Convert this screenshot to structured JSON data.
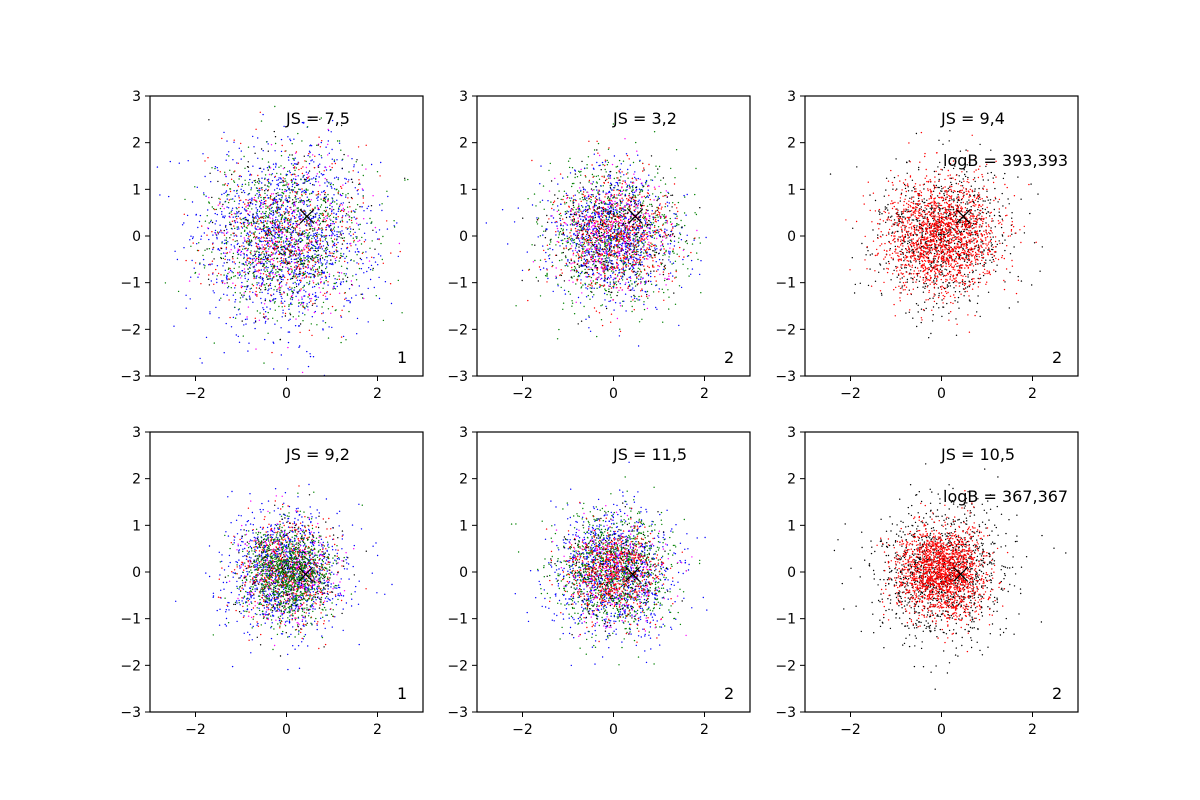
{
  "chart_data": [
    {
      "type": "scatter",
      "xlim": [
        -3,
        3
      ],
      "ylim": [
        -3,
        3
      ],
      "xticks": [
        "−2",
        "0",
        "2"
      ],
      "yticks": [
        "−3",
        "−2",
        "−1",
        "0",
        "1",
        "2",
        "3"
      ],
      "annotation": "JS = 7,5",
      "logB": "",
      "panel_label": "1",
      "marker": {
        "symbol": "x",
        "x": 0.45,
        "y": 0.42
      },
      "series": [
        {
          "color": "#0000ff",
          "count": 1400,
          "spread": 0.95
        },
        {
          "color": "#008000",
          "count": 900,
          "spread": 0.85
        },
        {
          "color": "#ff0000",
          "count": 500,
          "spread": 0.85
        },
        {
          "color": "#ff00ff",
          "count": 250,
          "spread": 0.85
        },
        {
          "color": "#000000",
          "count": 250,
          "spread": 0.85
        }
      ]
    },
    {
      "type": "scatter",
      "xlim": [
        -3,
        3
      ],
      "ylim": [
        -3,
        3
      ],
      "xticks": [
        "−2",
        "0",
        "2"
      ],
      "yticks": [
        "−3",
        "−2",
        "−1",
        "0",
        "1",
        "2",
        "3"
      ],
      "annotation": "JS = 3,2",
      "logB": "",
      "panel_label": "2",
      "marker": {
        "symbol": "x",
        "x": 0.48,
        "y": 0.42
      },
      "series": [
        {
          "color": "#008000",
          "count": 900,
          "spread": 0.75
        },
        {
          "color": "#0000ff",
          "count": 900,
          "spread": 0.7
        },
        {
          "color": "#ff0000",
          "count": 700,
          "spread": 0.65
        },
        {
          "color": "#ff00ff",
          "count": 300,
          "spread": 0.65
        },
        {
          "color": "#000000",
          "count": 300,
          "spread": 0.65
        }
      ]
    },
    {
      "type": "scatter",
      "xlim": [
        -3,
        3
      ],
      "ylim": [
        -3,
        3
      ],
      "xticks": [
        "−2",
        "0",
        "2"
      ],
      "yticks": [
        "−3",
        "−2",
        "−1",
        "0",
        "1",
        "2",
        "3"
      ],
      "annotation": "JS = 9,4",
      "logB": "logB = 393,393",
      "panel_label": "2",
      "marker": {
        "symbol": "x",
        "x": 0.48,
        "y": 0.42
      },
      "series": [
        {
          "color": "#000000",
          "count": 1000,
          "spread": 0.75
        },
        {
          "color": "#ff0000",
          "count": 1800,
          "spread": 0.62
        }
      ]
    },
    {
      "type": "scatter",
      "xlim": [
        -3,
        3
      ],
      "ylim": [
        -3,
        3
      ],
      "xticks": [
        "−2",
        "0",
        "2"
      ],
      "yticks": [
        "−3",
        "−2",
        "−1",
        "0",
        "1",
        "2",
        "3"
      ],
      "annotation": "JS = 9,2",
      "logB": "",
      "panel_label": "1",
      "marker": {
        "symbol": "x",
        "x": 0.42,
        "y": -0.05
      },
      "series": [
        {
          "color": "#0000ff",
          "count": 1100,
          "spread": 0.65
        },
        {
          "color": "#ff0000",
          "count": 600,
          "spread": 0.55
        },
        {
          "color": "#ff00ff",
          "count": 250,
          "spread": 0.55
        },
        {
          "color": "#000000",
          "count": 250,
          "spread": 0.55
        },
        {
          "color": "#008000",
          "count": 1000,
          "spread": 0.5
        }
      ]
    },
    {
      "type": "scatter",
      "xlim": [
        -3,
        3
      ],
      "ylim": [
        -3,
        3
      ],
      "xticks": [
        "−2",
        "0",
        "2"
      ],
      "yticks": [
        "−3",
        "−2",
        "−1",
        "0",
        "1",
        "2",
        "3"
      ],
      "annotation": "JS = 11,5",
      "logB": "",
      "panel_label": "2",
      "marker": {
        "symbol": "x",
        "x": 0.42,
        "y": -0.05
      },
      "series": [
        {
          "color": "#0000ff",
          "count": 1000,
          "spread": 0.7
        },
        {
          "color": "#008000",
          "count": 1000,
          "spread": 0.62
        },
        {
          "color": "#ff00ff",
          "count": 250,
          "spread": 0.55
        },
        {
          "color": "#000000",
          "count": 250,
          "spread": 0.55
        },
        {
          "color": "#ff0000",
          "count": 600,
          "spread": 0.5
        }
      ]
    },
    {
      "type": "scatter",
      "xlim": [
        -3,
        3
      ],
      "ylim": [
        -3,
        3
      ],
      "xticks": [
        "−2",
        "0",
        "2"
      ],
      "yticks": [
        "−3",
        "−2",
        "−1",
        "0",
        "1",
        "2",
        "3"
      ],
      "annotation": "JS = 10,5",
      "logB": "logB = 367,367",
      "panel_label": "2",
      "marker": {
        "symbol": "x",
        "x": 0.42,
        "y": -0.05
      },
      "series": [
        {
          "color": "#000000",
          "count": 1200,
          "spread": 0.72
        },
        {
          "color": "#ff0000",
          "count": 1800,
          "spread": 0.48
        }
      ]
    }
  ]
}
